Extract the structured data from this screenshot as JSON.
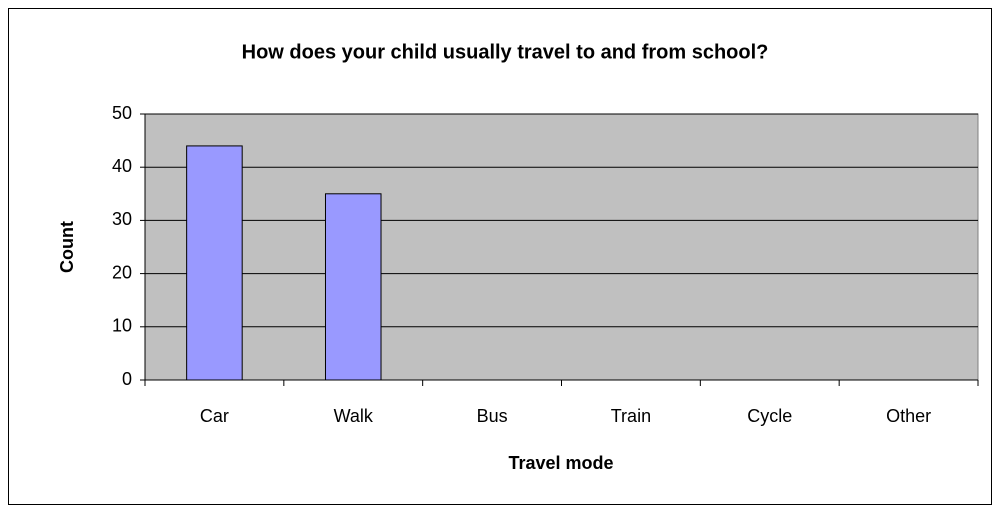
{
  "chart_data": {
    "type": "bar",
    "title": "How does your child usually travel to and from school?",
    "x_label": "Travel mode",
    "y_label": "Count",
    "categories": [
      "Car",
      "Walk",
      "Bus",
      "Train",
      "Cycle",
      "Other"
    ],
    "values": [
      44,
      35,
      0,
      0,
      0,
      0
    ],
    "color": "#9999ff",
    "plot_background": "#c0c0c0",
    "ylim": [
      0,
      50
    ],
    "yticks": [
      0,
      10,
      20,
      30,
      40,
      50
    ],
    "grid": true
  }
}
